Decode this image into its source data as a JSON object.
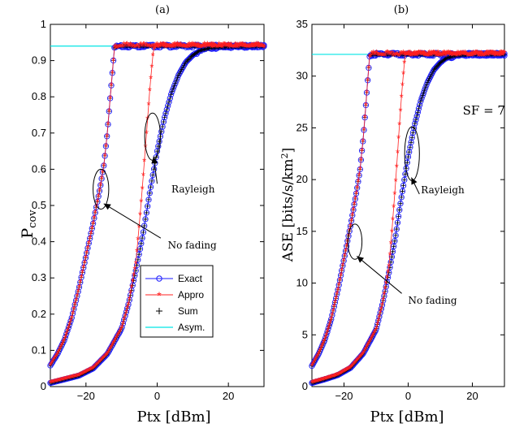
{
  "colors": {
    "exact": "#1a1aff",
    "approx": "#ff2020",
    "sum": "#000000",
    "asym": "#00e5e5"
  },
  "chart_data": [
    {
      "type": "line",
      "panel_label": "(a)",
      "xlabel": "Ptx [dBm]",
      "ylabel_main": "P",
      "ylabel_sub": "cov",
      "xlim": [
        -30,
        30
      ],
      "ylim": [
        0,
        1
      ],
      "xticks": [
        -20,
        0,
        20
      ],
      "xtick_labels": [
        "−20",
        "0",
        "20"
      ],
      "yticks": [
        0,
        0.1,
        0.2,
        0.3,
        0.4,
        0.5,
        0.6,
        0.7,
        0.8,
        0.9,
        1
      ],
      "ytick_labels": [
        "0",
        "0.1",
        "0.2",
        "0.3",
        "0.4",
        "0.5",
        "0.6",
        "0.7",
        "0.8",
        "0.9",
        "1"
      ],
      "asymptote": 0.94,
      "series": [
        {
          "name": "Exact",
          "marker": "circle"
        },
        {
          "name": "Appro",
          "marker": "star"
        },
        {
          "name": "Sum",
          "marker": "plus"
        },
        {
          "name": "Asym.",
          "marker": "line"
        }
      ],
      "curves": [
        {
          "group": "No fading",
          "sat_x": -12,
          "points": [
            [
              -30,
              0.058
            ],
            [
              -28,
              0.09
            ],
            [
              -26,
              0.13
            ],
            [
              -24,
              0.19
            ],
            [
              -22,
              0.27
            ],
            [
              -20,
              0.36
            ],
            [
              -18,
              0.45
            ],
            [
              -16,
              0.55
            ],
            [
              -15,
              0.61
            ],
            [
              -14,
              0.7
            ],
            [
              -13,
              0.82
            ],
            [
              -12,
              0.935
            ],
            [
              -11,
              0.94
            ],
            [
              30,
              0.94
            ]
          ]
        },
        {
          "group": "Rayleigh",
          "sat_x": null,
          "points": [
            [
              -30,
              0.01
            ],
            [
              -26,
              0.02
            ],
            [
              -22,
              0.03
            ],
            [
              -18,
              0.05
            ],
            [
              -14,
              0.09
            ],
            [
              -10,
              0.16
            ],
            [
              -8,
              0.23
            ],
            [
              -6,
              0.32
            ],
            [
              -4,
              0.42
            ],
            [
              -2,
              0.54
            ],
            [
              0,
              0.65
            ],
            [
              2,
              0.74
            ],
            [
              4,
              0.81
            ],
            [
              6,
              0.86
            ],
            [
              8,
              0.895
            ],
            [
              10,
              0.915
            ],
            [
              12,
              0.928
            ],
            [
              15,
              0.935
            ],
            [
              20,
              0.938
            ],
            [
              30,
              0.94
            ]
          ]
        },
        {
          "group": "Rayleigh-appro",
          "sat_x": -1,
          "points": [
            [
              -30,
              0.01
            ],
            [
              -26,
              0.02
            ],
            [
              -22,
              0.03
            ],
            [
              -18,
              0.05
            ],
            [
              -14,
              0.09
            ],
            [
              -10,
              0.16
            ],
            [
              -8,
              0.23
            ],
            [
              -6,
              0.34
            ],
            [
              -5,
              0.45
            ],
            [
              -4,
              0.57
            ],
            [
              -3,
              0.7
            ],
            [
              -2,
              0.83
            ],
            [
              -1,
              0.935
            ],
            [
              0,
              0.94
            ],
            [
              30,
              0.94
            ]
          ]
        }
      ],
      "annotations": [
        {
          "text": "Rayleigh",
          "x": 4,
          "y": 0.545,
          "ellipse": {
            "cx": -1.3,
            "cy": 0.69,
            "rx": 2.2,
            "ry": 0.065
          },
          "arrow_from": [
            0,
            0.56
          ],
          "arrow_to": [
            -1,
            0.635
          ]
        },
        {
          "text": "No fading",
          "x": 3,
          "y": 0.39,
          "ellipse": {
            "cx": -15.8,
            "cy": 0.545,
            "rx": 2.2,
            "ry": 0.055
          },
          "arrow_from": [
            1,
            0.41
          ],
          "arrow_to": [
            -15,
            0.505
          ]
        }
      ],
      "legend": {
        "position": "bottom-right",
        "entries": [
          "Exact",
          "Appro",
          "Sum",
          "Asym."
        ]
      }
    },
    {
      "type": "line",
      "panel_label": "(b)",
      "xlabel": "Ptx [dBm]",
      "ylabel_main": "ASE [bits/s/km",
      "ylabel_sup": "2",
      "ylabel_tail": "]",
      "xlim": [
        -30,
        30
      ],
      "ylim": [
        0,
        35
      ],
      "xticks": [
        -20,
        0,
        20
      ],
      "xtick_labels": [
        "−20",
        "0",
        "20"
      ],
      "yticks": [
        0,
        5,
        10,
        15,
        20,
        25,
        30,
        35
      ],
      "ytick_labels": [
        "0",
        "5",
        "10",
        "15",
        "20",
        "25",
        "30",
        "35"
      ],
      "asymptote": 32.1,
      "series": [
        {
          "name": "Exact",
          "marker": "circle"
        },
        {
          "name": "Appro",
          "marker": "star"
        },
        {
          "name": "Sum",
          "marker": "plus"
        },
        {
          "name": "Asym.",
          "marker": "line"
        }
      ],
      "curves": [
        {
          "group": "No fading",
          "sat_x": -12,
          "points": [
            [
              -30,
              2.0
            ],
            [
              -28,
              3.1
            ],
            [
              -26,
              4.5
            ],
            [
              -24,
              6.5
            ],
            [
              -22,
              9.2
            ],
            [
              -20,
              12.3
            ],
            [
              -18,
              15.5
            ],
            [
              -16,
              19.0
            ],
            [
              -15,
              21.0
            ],
            [
              -14,
              24.0
            ],
            [
              -13,
              28.0
            ],
            [
              -12,
              32.0
            ],
            [
              -11,
              32.1
            ],
            [
              30,
              32.1
            ]
          ]
        },
        {
          "group": "Rayleigh",
          "sat_x": null,
          "points": [
            [
              -30,
              0.35
            ],
            [
              -26,
              0.7
            ],
            [
              -22,
              1.1
            ],
            [
              -18,
              1.8
            ],
            [
              -14,
              3.2
            ],
            [
              -10,
              5.5
            ],
            [
              -8,
              8.0
            ],
            [
              -6,
              11.0
            ],
            [
              -4,
              14.4
            ],
            [
              -2,
              18.5
            ],
            [
              0,
              22.2
            ],
            [
              2,
              25.3
            ],
            [
              4,
              27.7
            ],
            [
              6,
              29.4
            ],
            [
              8,
              30.6
            ],
            [
              10,
              31.3
            ],
            [
              12,
              31.75
            ],
            [
              15,
              32.0
            ],
            [
              20,
              32.1
            ],
            [
              30,
              32.1
            ]
          ]
        },
        {
          "group": "Rayleigh-appro",
          "sat_x": -1,
          "points": [
            [
              -30,
              0.35
            ],
            [
              -26,
              0.7
            ],
            [
              -22,
              1.1
            ],
            [
              -18,
              1.8
            ],
            [
              -14,
              3.2
            ],
            [
              -10,
              5.5
            ],
            [
              -8,
              8.0
            ],
            [
              -6,
              11.6
            ],
            [
              -5,
              15.3
            ],
            [
              -4,
              19.4
            ],
            [
              -3,
              24.0
            ],
            [
              -2,
              28.4
            ],
            [
              -1,
              32.0
            ],
            [
              0,
              32.1
            ],
            [
              30,
              32.1
            ]
          ]
        }
      ],
      "annotations": [
        {
          "text": "SF = 7",
          "x": 17,
          "y": 26.6,
          "ellipse": null,
          "arrow_from": null,
          "arrow_to": null
        },
        {
          "text": "Rayleigh",
          "x": 4,
          "y": 19.0,
          "ellipse": {
            "cx": 1.2,
            "cy": 22.5,
            "rx": 2.3,
            "ry": 2.6
          },
          "arrow_from": [
            3.5,
            18.6
          ],
          "arrow_to": [
            1.0,
            20.2
          ]
        },
        {
          "text": "No fading",
          "x": 0,
          "y": 8.3,
          "ellipse": {
            "cx": -16.6,
            "cy": 14.0,
            "rx": 2.2,
            "ry": 1.7
          },
          "arrow_from": [
            -2,
            9.0
          ],
          "arrow_to": [
            -16,
            12.6
          ]
        }
      ],
      "legend": null
    }
  ]
}
